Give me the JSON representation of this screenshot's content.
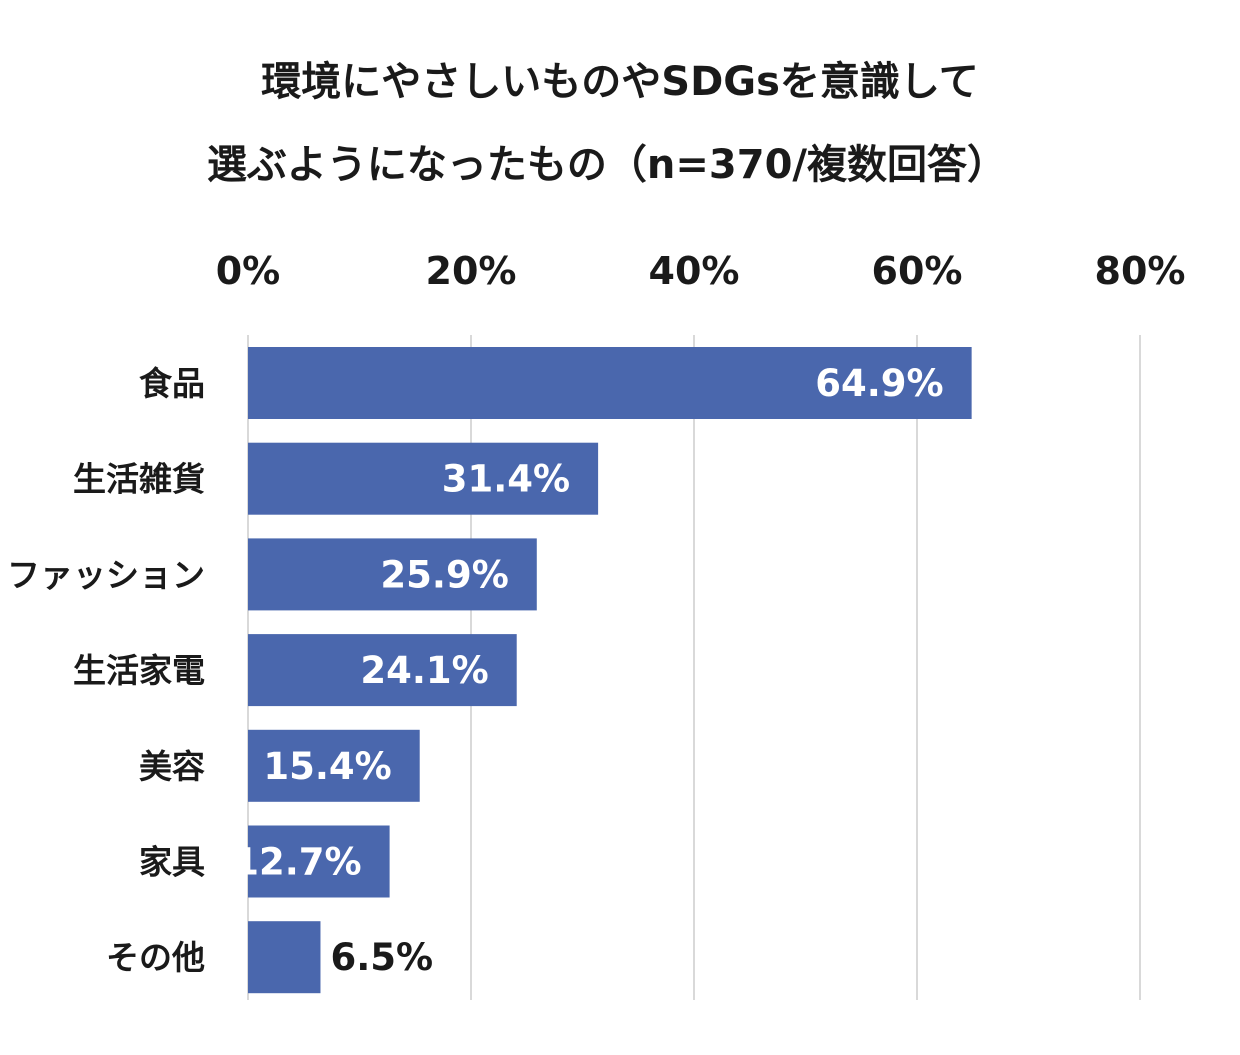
{
  "chart_data": {
    "type": "bar",
    "orientation": "horizontal",
    "title_lines": [
      "環境にやさしいものやSDGsを意識して",
      "選ぶようになったもの（n=370/複数回答）"
    ],
    "categories": [
      "食品",
      "生活雑貨",
      "ファッション",
      "生活家電",
      "美容",
      "家具",
      "その他"
    ],
    "values": [
      64.9,
      31.4,
      25.9,
      24.1,
      15.4,
      12.7,
      6.5
    ],
    "value_labels": [
      "64.9%",
      "31.4%",
      "25.9%",
      "24.1%",
      "15.4%",
      "12.7%",
      "6.5%"
    ],
    "x_ticks": [
      "0%",
      "20%",
      "40%",
      "60%",
      "80%"
    ],
    "x_tick_values": [
      0,
      20,
      40,
      60,
      80
    ],
    "xlim": [
      0,
      80
    ],
    "x_axis_position": "top",
    "grid": true,
    "bar_color": "#4a67ad",
    "grid_color": "#d9d9d9"
  }
}
